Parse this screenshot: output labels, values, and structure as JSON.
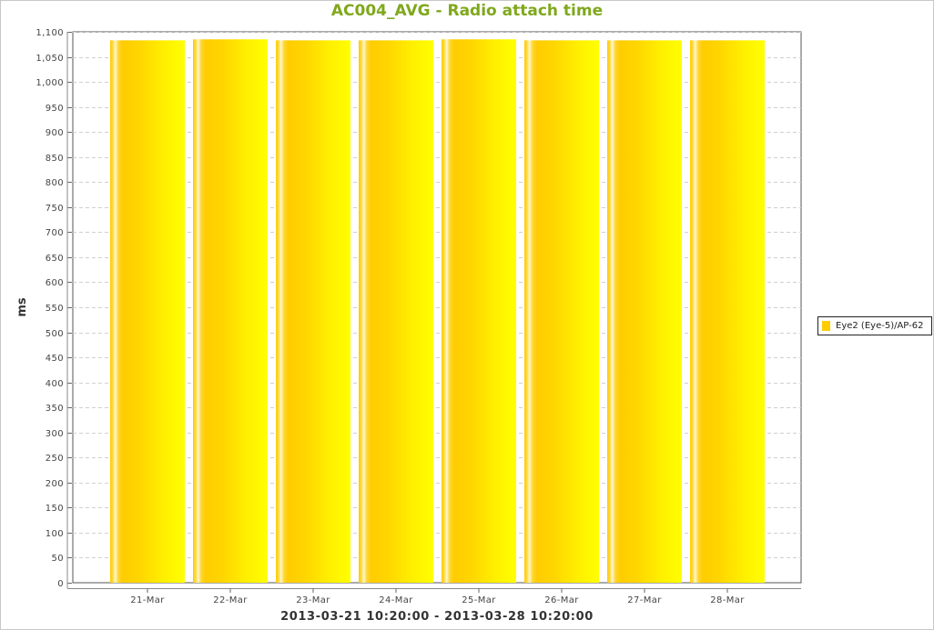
{
  "chart_data": {
    "type": "bar",
    "title": "AC004_AVG - Radio attach time",
    "xlabel": "2013-03-21 10:20:00 - 2013-03-28 10:20:00",
    "ylabel": "ms",
    "categories": [
      "21-Mar",
      "22-Mar",
      "23-Mar",
      "24-Mar",
      "25-Mar",
      "26-Mar",
      "27-Mar",
      "28-Mar"
    ],
    "series": [
      {
        "name": "Eye2 (Eye-5)/AP-62",
        "values": [
          1083,
          1085,
          1083,
          1083,
          1085,
          1083,
          1083,
          1083
        ]
      }
    ],
    "ylim": [
      0,
      1100
    ],
    "yticks": [
      0,
      50,
      100,
      150,
      200,
      250,
      300,
      350,
      400,
      450,
      500,
      550,
      600,
      650,
      700,
      750,
      800,
      850,
      900,
      950,
      1000,
      1050,
      1100
    ],
    "ytick_labels": [
      "0",
      "50",
      "100",
      "150",
      "200",
      "250",
      "300",
      "350",
      "400",
      "450",
      "500",
      "550",
      "600",
      "650",
      "700",
      "750",
      "800",
      "850",
      "900",
      "950",
      "1,000",
      "1,050",
      "1,100"
    ],
    "grid": true,
    "legend_position": "right",
    "colors": {
      "title": "#7fa81c",
      "bar_dark": "#ffcc00",
      "bar_light": "#ffff00",
      "bar_highlight": "#fff6c8",
      "gridline": "#d0d0d0"
    }
  }
}
